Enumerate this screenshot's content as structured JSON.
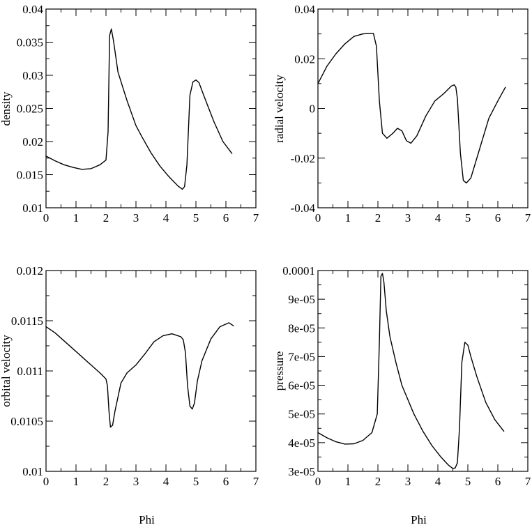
{
  "chart_data": [
    {
      "type": "line",
      "id": "density",
      "title": "",
      "xlabel": "",
      "ylabel": "density",
      "xlim": [
        0,
        7
      ],
      "ylim": [
        0.01,
        0.04
      ],
      "x_ticks": [
        0,
        1,
        2,
        3,
        4,
        5,
        6,
        7
      ],
      "x_tick_labels": [
        "0",
        "1",
        "2",
        "3",
        "4",
        "5",
        "6",
        "7"
      ],
      "y_ticks": [
        0.01,
        0.015,
        0.02,
        0.025,
        0.03,
        0.035,
        0.04
      ],
      "y_tick_labels": [
        "0.01",
        "0.015",
        "0.02",
        "0.025",
        "0.03",
        "0.035",
        "0.04"
      ],
      "series": [
        {
          "name": "density",
          "x": [
            0,
            0.3,
            0.6,
            0.9,
            1.2,
            1.5,
            1.8,
            2.0,
            2.07,
            2.12,
            2.18,
            2.25,
            2.4,
            2.7,
            3.0,
            3.2,
            3.5,
            3.8,
            4.1,
            4.4,
            4.55,
            4.62,
            4.7,
            4.8,
            4.9,
            5.0,
            5.1,
            5.3,
            5.6,
            5.9,
            6.2
          ],
          "y": [
            0.0178,
            0.0171,
            0.0165,
            0.0161,
            0.0158,
            0.0159,
            0.0165,
            0.0172,
            0.0215,
            0.036,
            0.037,
            0.0352,
            0.0305,
            0.0262,
            0.0224,
            0.0207,
            0.0183,
            0.0163,
            0.0147,
            0.0133,
            0.0128,
            0.0132,
            0.0165,
            0.027,
            0.029,
            0.0293,
            0.0289,
            0.0265,
            0.023,
            0.02,
            0.0182
          ]
        }
      ]
    },
    {
      "type": "line",
      "id": "radial_velocity",
      "title": "",
      "xlabel": "",
      "ylabel": "radial velocity",
      "xlim": [
        0,
        7
      ],
      "ylim": [
        -0.04,
        0.04
      ],
      "x_ticks": [
        0,
        1,
        2,
        3,
        4,
        5,
        6,
        7
      ],
      "x_tick_labels": [
        "0",
        "1",
        "2",
        "3",
        "4",
        "5",
        "6",
        "7"
      ],
      "y_ticks": [
        -0.04,
        -0.02,
        0,
        0.02,
        0.04
      ],
      "y_tick_labels": [
        "-0.04",
        "-0.02",
        "0",
        "0.02",
        "0.04"
      ],
      "series": [
        {
          "name": "radial velocity",
          "x": [
            0,
            0.3,
            0.6,
            0.9,
            1.2,
            1.5,
            1.75,
            1.85,
            1.95,
            2.05,
            2.15,
            2.3,
            2.5,
            2.65,
            2.8,
            2.95,
            3.1,
            3.3,
            3.6,
            3.9,
            4.2,
            4.45,
            4.55,
            4.6,
            4.65,
            4.75,
            4.85,
            4.95,
            5.1,
            5.4,
            5.7,
            6.0,
            6.25
          ],
          "y": [
            0.01,
            0.017,
            0.022,
            0.026,
            0.029,
            0.03,
            0.0302,
            0.0302,
            0.025,
            0.003,
            -0.01,
            -0.012,
            -0.01,
            -0.008,
            -0.009,
            -0.013,
            -0.014,
            -0.011,
            -0.003,
            0.003,
            0.006,
            0.009,
            0.0095,
            0.0085,
            0.004,
            -0.018,
            -0.029,
            -0.03,
            -0.028,
            -0.016,
            -0.004,
            0.003,
            0.0085
          ]
        }
      ]
    },
    {
      "type": "line",
      "id": "orbital_velocity",
      "title": "",
      "xlabel": "Phi",
      "ylabel": "orbital velocity",
      "xlim": [
        0,
        7
      ],
      "ylim": [
        0.01,
        0.012
      ],
      "x_ticks": [
        0,
        1,
        2,
        3,
        4,
        5,
        6,
        7
      ],
      "x_tick_labels": [
        "0",
        "1",
        "2",
        "3",
        "4",
        "5",
        "6",
        "7"
      ],
      "y_ticks": [
        0.01,
        0.0105,
        0.011,
        0.0115,
        0.012
      ],
      "y_tick_labels": [
        "0.01",
        "0.0105",
        "0.011",
        "0.0115",
        "0.012"
      ],
      "series": [
        {
          "name": "orbital velocity",
          "x": [
            0,
            0.3,
            0.6,
            0.9,
            1.2,
            1.5,
            1.8,
            2.0,
            2.05,
            2.1,
            2.15,
            2.22,
            2.3,
            2.5,
            2.7,
            3.0,
            3.3,
            3.6,
            3.9,
            4.2,
            4.5,
            4.58,
            4.65,
            4.72,
            4.8,
            4.88,
            4.95,
            5.05,
            5.2,
            5.5,
            5.8,
            6.1,
            6.25
          ],
          "y": [
            0.01144,
            0.01138,
            0.0113,
            0.01122,
            0.01114,
            0.01106,
            0.01098,
            0.01092,
            0.01085,
            0.0106,
            0.01044,
            0.01046,
            0.0106,
            0.01088,
            0.01098,
            0.01106,
            0.01117,
            0.01129,
            0.01135,
            0.01137,
            0.01134,
            0.01131,
            0.01118,
            0.01085,
            0.01065,
            0.01062,
            0.01068,
            0.0109,
            0.0111,
            0.01132,
            0.01144,
            0.01148,
            0.01145
          ]
        }
      ]
    },
    {
      "type": "line",
      "id": "pressure",
      "title": "",
      "xlabel": "Phi",
      "ylabel": "pressure",
      "xlim": [
        0,
        7
      ],
      "ylim": [
        3e-05,
        0.0001
      ],
      "x_ticks": [
        0,
        1,
        2,
        3,
        4,
        5,
        6,
        7
      ],
      "x_tick_labels": [
        "0",
        "1",
        "2",
        "3",
        "4",
        "5",
        "6",
        "7"
      ],
      "y_ticks": [
        3e-05,
        4e-05,
        5e-05,
        6e-05,
        7e-05,
        8e-05,
        9e-05,
        0.0001
      ],
      "y_tick_labels": [
        "3e-05",
        "4e-05",
        "5e-05",
        "6e-05",
        "7e-05",
        "8e-05",
        "9e-05",
        "0.0001"
      ],
      "series": [
        {
          "name": "pressure",
          "x": [
            0,
            0.3,
            0.6,
            0.9,
            1.2,
            1.5,
            1.8,
            1.98,
            2.05,
            2.1,
            2.15,
            2.2,
            2.28,
            2.4,
            2.6,
            2.8,
            3.0,
            3.2,
            3.5,
            3.8,
            4.1,
            4.35,
            4.5,
            4.58,
            4.65,
            4.72,
            4.8,
            4.9,
            5.0,
            5.1,
            5.3,
            5.6,
            5.9,
            6.2
          ],
          "y": [
            4.35e-05,
            4.17e-05,
            4.03e-05,
            3.95e-05,
            3.96e-05,
            4.08e-05,
            4.35e-05,
            5e-05,
            7.5e-05,
            9.8e-05,
            9.9e-05,
            9.6e-05,
            8.6e-05,
            7.7e-05,
            6.8e-05,
            6e-05,
            5.5e-05,
            5e-05,
            4.4e-05,
            3.9e-05,
            3.5e-05,
            3.22e-05,
            3.1e-05,
            3.12e-05,
            3.3e-05,
            4.5e-05,
            6.8e-05,
            7.5e-05,
            7.4e-05,
            7e-05,
            6.3e-05,
            5.4e-05,
            4.8e-05,
            4.4e-05
          ]
        }
      ]
    }
  ]
}
